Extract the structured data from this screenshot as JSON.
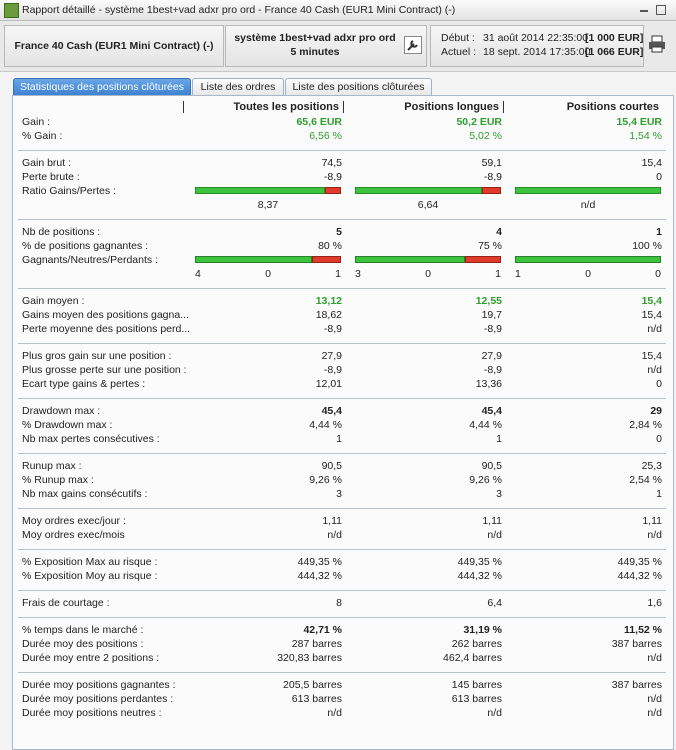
{
  "window": {
    "title": "Rapport détaillé - système 1best+vad adxr pro ord - France 40 Cash (EUR1 Mini Contract) (-)"
  },
  "header": {
    "instrument": "France 40 Cash (EUR1 Mini Contract) (-)",
    "system": "système 1best+vad adxr pro ord",
    "period": "5 minutes",
    "start_label": "Début :",
    "start_date": "31 août 2014 22:35:00",
    "start_capital": "[1 000 EUR]",
    "end_label": "Actuel :",
    "end_date": "18 sept. 2014 17:35:00",
    "end_capital": "[1 066 EUR]"
  },
  "tabs": [
    "Statistiques des positions clôturées",
    "Liste des ordres",
    "Liste des positions clôturées"
  ],
  "table": {
    "columns": [
      "Toutes les positions",
      "Positions longues",
      "Positions courtes"
    ],
    "groups": [
      {
        "rows": [
          {
            "label": "Gain :",
            "values": [
              "65,6 EUR",
              "50,2 EUR",
              "15,4 EUR"
            ],
            "style": "green-bold"
          },
          {
            "label": "% Gain :",
            "values": [
              "6,56 %",
              "5,02 %",
              "1,54 %"
            ],
            "style": "green"
          }
        ]
      },
      {
        "rows": [
          {
            "label": "Gain brut :",
            "values": [
              "74,5",
              "59,1",
              "15,4"
            ]
          },
          {
            "label": "Perte brute :",
            "values": [
              "-8,9",
              "-8,9",
              "0"
            ]
          },
          {
            "label": "Ratio Gains/Pertes :",
            "values": [
              "8,37",
              "6,64",
              "n/d"
            ],
            "kind": "ratio-bar"
          }
        ]
      },
      {
        "rows": [
          {
            "label": "Nb de positions :",
            "values": [
              "5",
              "4",
              "1"
            ],
            "style": "bold"
          },
          {
            "label": "% de positions gagnantes :",
            "values": [
              "80 %",
              "75 %",
              "100 %"
            ]
          },
          {
            "label": "Gagnants/Neutres/Perdants :",
            "values": [
              [
                "4",
                "0",
                "1"
              ],
              [
                "3",
                "0",
                "1"
              ],
              [
                "1",
                "0",
                "0"
              ]
            ],
            "kind": "count-bar"
          }
        ]
      },
      {
        "rows": [
          {
            "label": "Gain moyen :",
            "values": [
              "13,12",
              "12,55",
              "15,4"
            ],
            "style": "green-bold"
          },
          {
            "label": "Gains moyen des positions gagna...",
            "values": [
              "18,62",
              "19,7",
              "15,4"
            ]
          },
          {
            "label": "Perte moyenne des positions perd...",
            "values": [
              "-8,9",
              "-8,9",
              "n/d"
            ]
          }
        ]
      },
      {
        "rows": [
          {
            "label": "Plus gros gain sur une position :",
            "values": [
              "27,9",
              "27,9",
              "15,4"
            ]
          },
          {
            "label": "Plus grosse perte sur une position :",
            "values": [
              "-8,9",
              "-8,9",
              "n/d"
            ]
          },
          {
            "label": "Ecart type gains & pertes :",
            "values": [
              "12,01",
              "13,36",
              "0"
            ]
          }
        ]
      },
      {
        "rows": [
          {
            "label": "Drawdown max :",
            "values": [
              "45,4",
              "45,4",
              "29"
            ],
            "style": "bold"
          },
          {
            "label": "% Drawdown max :",
            "values": [
              "4,44 %",
              "4,44 %",
              "2,84 %"
            ]
          },
          {
            "label": "Nb max pertes consécutives :",
            "values": [
              "1",
              "1",
              "0"
            ]
          }
        ]
      },
      {
        "rows": [
          {
            "label": "Runup max :",
            "values": [
              "90,5",
              "90,5",
              "25,3"
            ]
          },
          {
            "label": "% Runup max :",
            "values": [
              "9,26 %",
              "9,26 %",
              "2,54 %"
            ]
          },
          {
            "label": "Nb max gains consécutifs :",
            "values": [
              "3",
              "3",
              "1"
            ]
          }
        ]
      },
      {
        "rows": [
          {
            "label": "Moy ordres exec/jour :",
            "values": [
              "1,11",
              "1,11",
              "1,11"
            ]
          },
          {
            "label": "Moy ordres exec/mois",
            "values": [
              "n/d",
              "n/d",
              "n/d"
            ]
          }
        ]
      },
      {
        "rows": [
          {
            "label": "% Exposition Max au risque :",
            "values": [
              "449,35 %",
              "449,35 %",
              "449,35 %"
            ]
          },
          {
            "label": "% Exposition Moy au risque :",
            "values": [
              "444,32 %",
              "444,32 %",
              "444,32 %"
            ]
          }
        ]
      },
      {
        "rows": [
          {
            "label": "Frais de courtage :",
            "values": [
              "8",
              "6,4",
              "1,6"
            ]
          }
        ]
      },
      {
        "rows": [
          {
            "label": "% temps dans le marché :",
            "values": [
              "42,71 %",
              "31,19 %",
              "11,52 %"
            ],
            "style": "bold"
          },
          {
            "label": "Durée moy des positions :",
            "values": [
              "287 barres",
              "262 barres",
              "387 barres"
            ]
          },
          {
            "label": "Durée moy entre 2 positions :",
            "values": [
              "320,83 barres",
              "462,4 barres",
              "n/d"
            ]
          }
        ]
      },
      {
        "rows": [
          {
            "label": "Durée moy positions gagnantes :",
            "values": [
              "205,5 barres",
              "145 barres",
              "387 barres"
            ]
          },
          {
            "label": "Durée moy positions perdantes :",
            "values": [
              "613 barres",
              "613 barres",
              "n/d"
            ]
          },
          {
            "label": "Durée moy positions neutres :",
            "values": [
              "n/d",
              "n/d",
              "n/d"
            ]
          }
        ]
      }
    ]
  }
}
